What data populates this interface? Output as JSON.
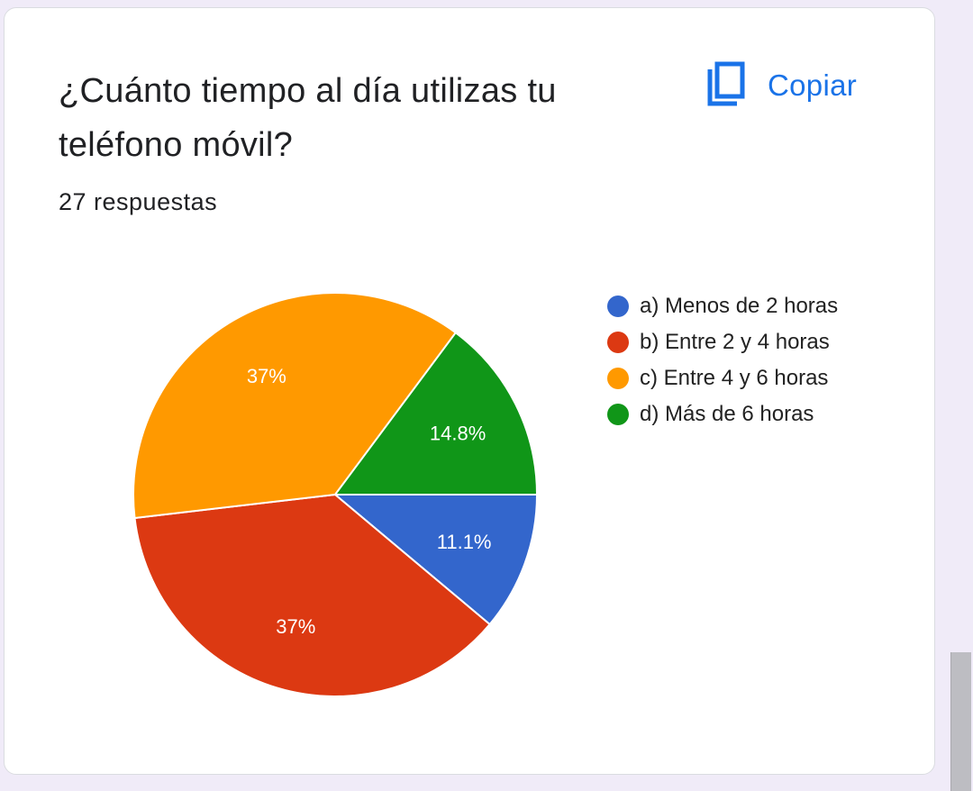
{
  "question": {
    "title": "¿Cuánto tiempo al día utilizas tu teléfono móvil?",
    "response_count": "27 respuestas"
  },
  "copy_button": {
    "label": "Copiar",
    "icon": "copy-icon",
    "color": "#1a73e8"
  },
  "chart_data": {
    "type": "pie",
    "title": "",
    "slices": [
      {
        "label": "a) Menos de 2 horas",
        "value": 11.1,
        "display": "11.1%",
        "color": "#3366cc"
      },
      {
        "label": "b) Entre 2 y 4 horas",
        "value": 37.0,
        "display": "37%",
        "color": "#dc3912"
      },
      {
        "label": "c) Entre 4 y 6 horas",
        "value": 37.0,
        "display": "37%",
        "color": "#ff9900"
      },
      {
        "label": "d) Más de 6 horas",
        "value": 14.8,
        "display": "14.8%",
        "color": "#109618"
      }
    ],
    "legend_position": "right"
  }
}
